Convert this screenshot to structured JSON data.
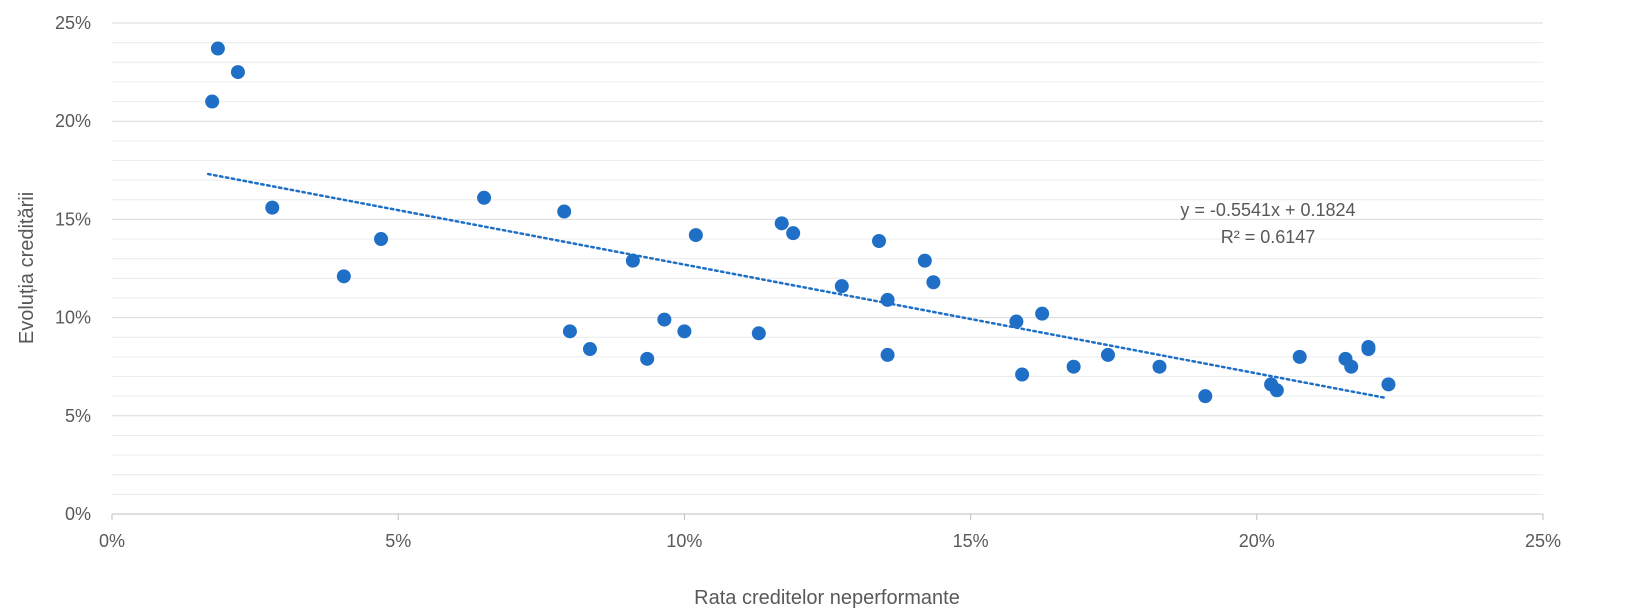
{
  "chart_data": {
    "type": "scatter",
    "title": "",
    "xlabel": "Rata creditelor neperformante",
    "ylabel": "Evoluția creditării",
    "xlim": [
      0,
      0.25
    ],
    "ylim": [
      0,
      0.25
    ],
    "x_ticks": [
      0,
      0.05,
      0.1,
      0.15,
      0.2,
      0.25
    ],
    "x_tick_labels": [
      "0%",
      "5%",
      "10%",
      "15%",
      "20%",
      "25%"
    ],
    "y_ticks": [
      0,
      0.05,
      0.1,
      0.15,
      0.2,
      0.25
    ],
    "y_tick_labels": [
      "0%",
      "5%",
      "10%",
      "15%",
      "20%",
      "25%"
    ],
    "grid": true,
    "minor_grid_step": 0.01,
    "colors": {
      "points": "#1f6fc6",
      "trendline": "#1f6fc6",
      "grid_major": "#d9d9d9",
      "grid_minor": "#ececec",
      "text": "#595959"
    },
    "points": [
      {
        "x": 0.0175,
        "y": 0.21
      },
      {
        "x": 0.0185,
        "y": 0.237
      },
      {
        "x": 0.022,
        "y": 0.225
      },
      {
        "x": 0.028,
        "y": 0.156
      },
      {
        "x": 0.0405,
        "y": 0.121
      },
      {
        "x": 0.047,
        "y": 0.14
      },
      {
        "x": 0.065,
        "y": 0.161
      },
      {
        "x": 0.079,
        "y": 0.154
      },
      {
        "x": 0.08,
        "y": 0.093
      },
      {
        "x": 0.0835,
        "y": 0.084
      },
      {
        "x": 0.091,
        "y": 0.129
      },
      {
        "x": 0.0935,
        "y": 0.079
      },
      {
        "x": 0.0965,
        "y": 0.099
      },
      {
        "x": 0.1,
        "y": 0.093
      },
      {
        "x": 0.102,
        "y": 0.142
      },
      {
        "x": 0.113,
        "y": 0.092
      },
      {
        "x": 0.117,
        "y": 0.148
      },
      {
        "x": 0.119,
        "y": 0.143
      },
      {
        "x": 0.1275,
        "y": 0.116
      },
      {
        "x": 0.134,
        "y": 0.139
      },
      {
        "x": 0.1355,
        "y": 0.109
      },
      {
        "x": 0.1355,
        "y": 0.081
      },
      {
        "x": 0.142,
        "y": 0.129
      },
      {
        "x": 0.1435,
        "y": 0.118
      },
      {
        "x": 0.158,
        "y": 0.098
      },
      {
        "x": 0.159,
        "y": 0.071
      },
      {
        "x": 0.1625,
        "y": 0.102
      },
      {
        "x": 0.168,
        "y": 0.075
      },
      {
        "x": 0.174,
        "y": 0.081
      },
      {
        "x": 0.183,
        "y": 0.075
      },
      {
        "x": 0.191,
        "y": 0.06
      },
      {
        "x": 0.2025,
        "y": 0.066
      },
      {
        "x": 0.2035,
        "y": 0.063
      },
      {
        "x": 0.2075,
        "y": 0.08
      },
      {
        "x": 0.2155,
        "y": 0.079
      },
      {
        "x": 0.2165,
        "y": 0.075
      },
      {
        "x": 0.2195,
        "y": 0.085
      },
      {
        "x": 0.2195,
        "y": 0.084
      },
      {
        "x": 0.223,
        "y": 0.066
      }
    ],
    "trendline": {
      "slope": -0.5541,
      "intercept": 0.1824,
      "x_start": 0.0168,
      "x_end": 0.2225,
      "equation_label": "y = -0.5541x + 0.1824",
      "r2_label": "R² = 0.6147"
    }
  }
}
